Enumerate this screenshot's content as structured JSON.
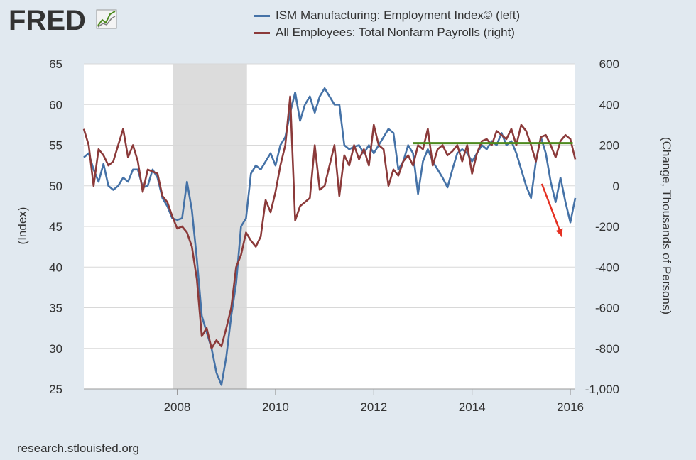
{
  "header": {
    "logo_text": "FRED",
    "logo_icon": "line-chart-icon"
  },
  "footer": {
    "source": "research.stlouisfed.org"
  },
  "colors": {
    "series_left": "#4572a7",
    "series_right": "#8b3a3a",
    "recession": "#dcdcdc",
    "trend": "#4d8a1e",
    "arrow": "#e53022"
  },
  "chart_data": {
    "type": "line",
    "x_ticks": [
      "2008",
      "2010",
      "2012",
      "2014",
      "2016"
    ],
    "x_tick_values": [
      2008,
      2010,
      2012,
      2014,
      2016
    ],
    "xlim": [
      2006.1,
      2016.1
    ],
    "ylabel_left": "(Index)",
    "ylabel_right": "(Change, Thousands of Persons)",
    "ylim_left": [
      25,
      65
    ],
    "ylim_right": [
      -1000,
      600
    ],
    "left_ticks": [
      "25",
      "30",
      "35",
      "40",
      "45",
      "50",
      "55",
      "60",
      "65"
    ],
    "left_tick_values": [
      25,
      30,
      35,
      40,
      45,
      50,
      55,
      60,
      65
    ],
    "right_ticks": [
      "-1,000",
      "-800",
      "-600",
      "-400",
      "-200",
      "0",
      "200",
      "400",
      "600"
    ],
    "right_tick_values": [
      -1000,
      -800,
      -600,
      -400,
      -200,
      0,
      200,
      400,
      600
    ],
    "grid": "horizontal",
    "legend_position": "top-center",
    "recession_band": [
      2007.92,
      2009.42
    ],
    "trend_line": {
      "x": [
        2012.8,
        2016.05
      ],
      "y_right": 210
    },
    "arrow": {
      "from": [
        2015.42,
        10
      ],
      "to": [
        2015.83,
        -250
      ]
    },
    "series": [
      {
        "name": "ISM Manufacturing: Employment Index© (left)",
        "axis": "left",
        "x": [
          2006.1,
          2006.2,
          2006.3,
          2006.4,
          2006.5,
          2006.6,
          2006.7,
          2006.8,
          2006.9,
          2007.0,
          2007.1,
          2007.2,
          2007.3,
          2007.4,
          2007.5,
          2007.6,
          2007.7,
          2007.8,
          2007.9,
          2008.0,
          2008.1,
          2008.2,
          2008.3,
          2008.4,
          2008.5,
          2008.6,
          2008.7,
          2008.8,
          2008.9,
          2009.0,
          2009.1,
          2009.2,
          2009.3,
          2009.4,
          2009.5,
          2009.6,
          2009.7,
          2009.8,
          2009.9,
          2010.0,
          2010.1,
          2010.2,
          2010.3,
          2010.4,
          2010.5,
          2010.6,
          2010.7,
          2010.8,
          2010.9,
          2011.0,
          2011.1,
          2011.2,
          2011.3,
          2011.4,
          2011.5,
          2011.6,
          2011.7,
          2011.8,
          2011.9,
          2012.0,
          2012.1,
          2012.2,
          2012.3,
          2012.4,
          2012.5,
          2012.6,
          2012.7,
          2012.8,
          2012.9,
          2013.0,
          2013.1,
          2013.2,
          2013.3,
          2013.4,
          2013.5,
          2013.6,
          2013.7,
          2013.8,
          2013.9,
          2014.0,
          2014.1,
          2014.2,
          2014.3,
          2014.4,
          2014.5,
          2014.6,
          2014.7,
          2014.8,
          2014.9,
          2015.0,
          2015.1,
          2015.2,
          2015.3,
          2015.4,
          2015.5,
          2015.6,
          2015.7,
          2015.8,
          2015.9,
          2016.0,
          2016.1
        ],
        "values": [
          53.5,
          54,
          52,
          50.5,
          52.7,
          50,
          49.5,
          50,
          51,
          50.5,
          52,
          52,
          49.8,
          50,
          52,
          51,
          48.5,
          47.5,
          46,
          45.8,
          46,
          50.5,
          47,
          41,
          34,
          32,
          30,
          27,
          25.5,
          29,
          34,
          38,
          45,
          46,
          51.5,
          52.5,
          52,
          53,
          54,
          52.5,
          55,
          56,
          59,
          61.5,
          58,
          60,
          61,
          59,
          61,
          62,
          61,
          60,
          60,
          55,
          54.5,
          54.8,
          55,
          54,
          55,
          54,
          55,
          56,
          57,
          56.5,
          52,
          53,
          55,
          54,
          49,
          53,
          54.5,
          53,
          52,
          51,
          49.8,
          52,
          54,
          54.5,
          54,
          53,
          54,
          55,
          54.5,
          55.5,
          55,
          56.5,
          55,
          55.5,
          54,
          52,
          50,
          48.5,
          53,
          56,
          54,
          50.5,
          48,
          51,
          48,
          45.5,
          48.5
        ]
      },
      {
        "name": "All Employees: Total Nonfarm Payrolls (right)",
        "axis": "right",
        "x": [
          2006.1,
          2006.2,
          2006.3,
          2006.4,
          2006.5,
          2006.6,
          2006.7,
          2006.8,
          2006.9,
          2007.0,
          2007.1,
          2007.2,
          2007.3,
          2007.4,
          2007.5,
          2007.6,
          2007.7,
          2007.8,
          2007.9,
          2008.0,
          2008.1,
          2008.2,
          2008.3,
          2008.4,
          2008.5,
          2008.6,
          2008.7,
          2008.8,
          2008.9,
          2009.0,
          2009.1,
          2009.2,
          2009.3,
          2009.4,
          2009.5,
          2009.6,
          2009.7,
          2009.8,
          2009.9,
          2010.0,
          2010.1,
          2010.2,
          2010.3,
          2010.4,
          2010.5,
          2010.6,
          2010.7,
          2010.8,
          2010.9,
          2011.0,
          2011.1,
          2011.2,
          2011.3,
          2011.4,
          2011.5,
          2011.6,
          2011.7,
          2011.8,
          2011.9,
          2012.0,
          2012.1,
          2012.2,
          2012.3,
          2012.4,
          2012.5,
          2012.6,
          2012.7,
          2012.8,
          2012.9,
          2013.0,
          2013.1,
          2013.2,
          2013.3,
          2013.4,
          2013.5,
          2013.6,
          2013.7,
          2013.8,
          2013.9,
          2014.0,
          2014.1,
          2014.2,
          2014.3,
          2014.4,
          2014.5,
          2014.6,
          2014.7,
          2014.8,
          2014.9,
          2015.0,
          2015.1,
          2015.2,
          2015.3,
          2015.4,
          2015.5,
          2015.6,
          2015.7,
          2015.8,
          2015.9,
          2016.0,
          2016.1
        ],
        "values": [
          280,
          200,
          0,
          180,
          150,
          100,
          120,
          200,
          280,
          140,
          200,
          120,
          -30,
          80,
          70,
          60,
          -50,
          -80,
          -150,
          -210,
          -200,
          -230,
          -300,
          -460,
          -740,
          -700,
          -800,
          -760,
          -790,
          -700,
          -600,
          -400,
          -340,
          -230,
          -270,
          -300,
          -250,
          -70,
          -130,
          -30,
          100,
          200,
          440,
          -170,
          -100,
          -80,
          -60,
          200,
          -20,
          0,
          100,
          200,
          -50,
          150,
          100,
          200,
          130,
          180,
          100,
          300,
          200,
          180,
          0,
          80,
          50,
          120,
          150,
          100,
          200,
          180,
          280,
          100,
          180,
          200,
          150,
          170,
          200,
          120,
          200,
          60,
          160,
          220,
          230,
          200,
          270,
          250,
          230,
          280,
          200,
          300,
          270,
          200,
          120,
          240,
          250,
          200,
          140,
          220,
          250,
          230,
          130
        ]
      }
    ]
  }
}
